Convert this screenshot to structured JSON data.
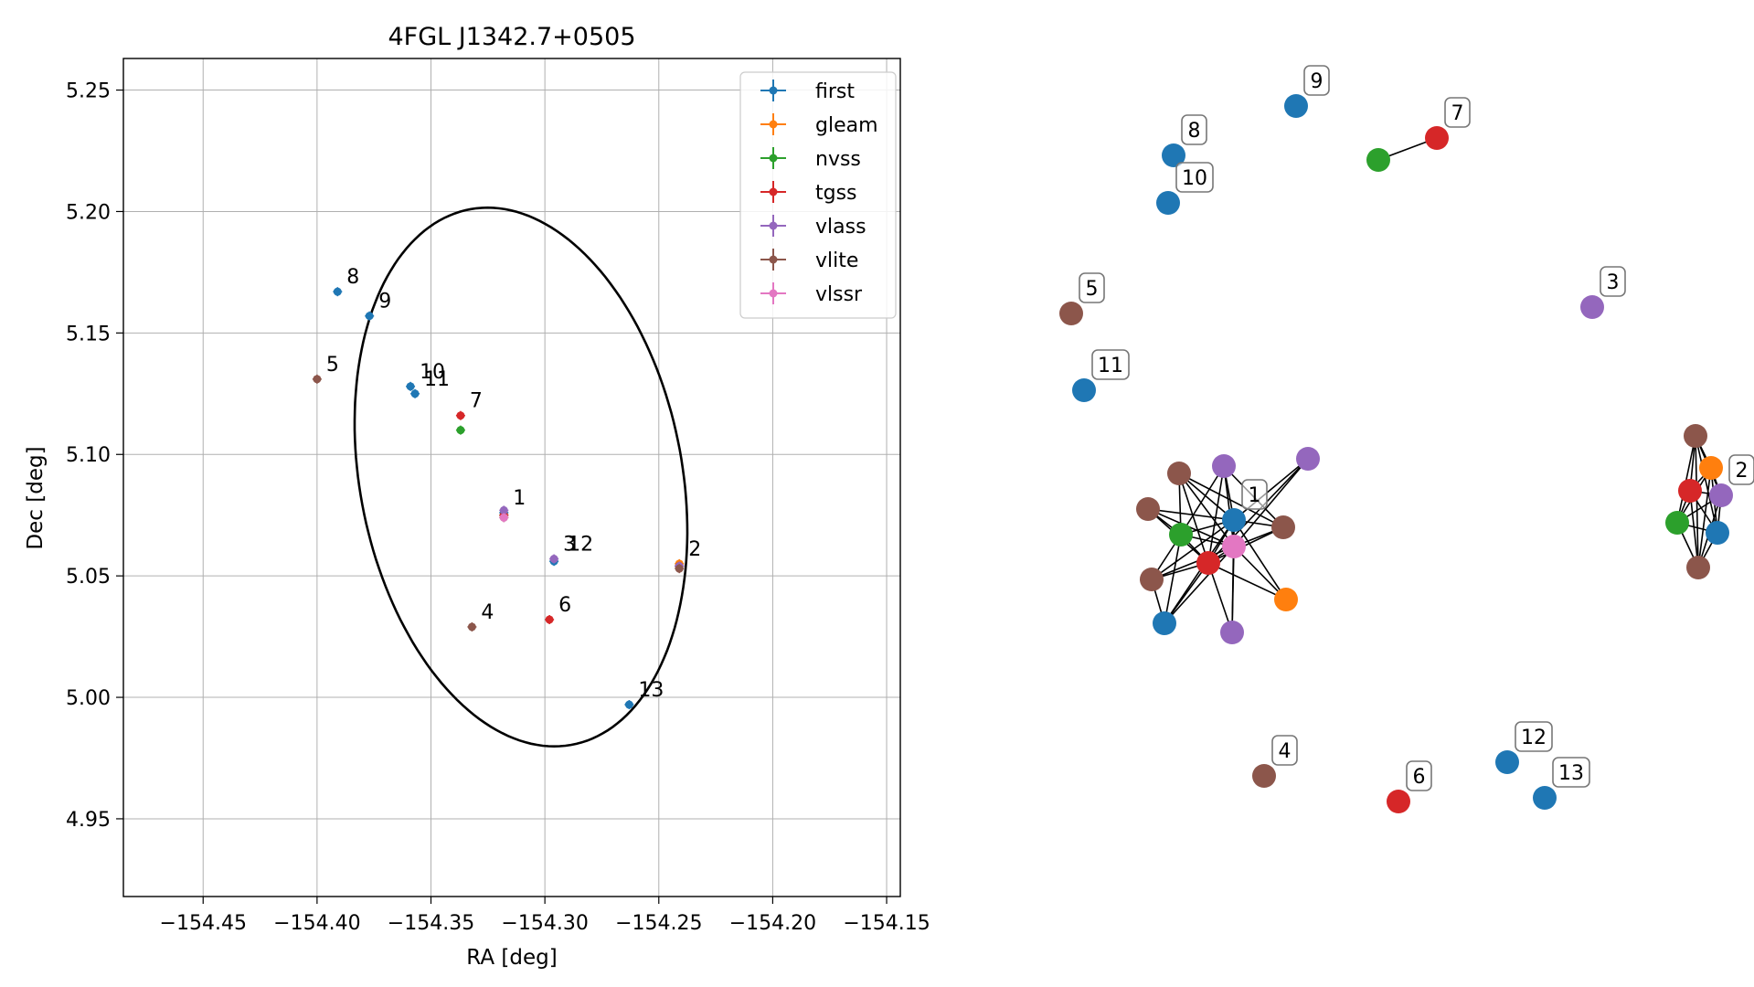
{
  "chart_data": [
    {
      "type": "scatter",
      "title": "4FGL J1342.7+0505",
      "xlabel": "RA [deg]",
      "ylabel": "Dec [deg]",
      "xlim": [
        -154.485,
        -154.144
      ],
      "ylim": [
        4.918,
        5.263
      ],
      "xticks": [
        -154.45,
        -154.4,
        -154.35,
        -154.3,
        -154.25,
        -154.2,
        -154.15
      ],
      "xtick_labels": [
        "−154.45",
        "−154.40",
        "−154.35",
        "−154.30",
        "−154.25",
        "−154.20",
        "−154.15"
      ],
      "yticks": [
        4.95,
        5.0,
        5.05,
        5.1,
        5.15,
        5.2,
        5.25
      ],
      "ytick_labels": [
        "4.95",
        "5.00",
        "5.05",
        "5.10",
        "5.15",
        "5.20",
        "5.25"
      ],
      "grid": true,
      "legend_position": "top-right",
      "ellipse": {
        "center": [
          -154.3105,
          5.0907
        ],
        "semi_axes": [
          0.0705,
          0.1125
        ],
        "angle_deg": 12.5
      },
      "series": [
        {
          "name": "first",
          "color": "#1f77b4",
          "points": [
            [
              -154.391,
              5.167
            ],
            [
              -154.377,
              5.157
            ],
            [
              -154.359,
              5.128
            ],
            [
              -154.357,
              5.125
            ],
            [
              -154.296,
              5.056
            ],
            [
              -154.263,
              4.997
            ],
            [
              -154.318,
              5.076
            ]
          ]
        },
        {
          "name": "gleam",
          "color": "#ff7f0e",
          "points": [
            [
              -154.241,
              5.055
            ]
          ]
        },
        {
          "name": "nvss",
          "color": "#2ca02c",
          "points": [
            [
              -154.337,
              5.11
            ],
            [
              -154.318,
              5.075
            ],
            [
              -154.241,
              5.054
            ]
          ]
        },
        {
          "name": "tgss",
          "color": "#d62728",
          "points": [
            [
              -154.337,
              5.116
            ],
            [
              -154.298,
              5.032
            ],
            [
              -154.318,
              5.075
            ],
            [
              -154.241,
              5.054
            ]
          ]
        },
        {
          "name": "vlass",
          "color": "#9467bd",
          "points": [
            [
              -154.318,
              5.077
            ],
            [
              -154.296,
              5.057
            ],
            [
              -154.241,
              5.054
            ]
          ]
        },
        {
          "name": "vlite",
          "color": "#8c564b",
          "points": [
            [
              -154.4,
              5.131
            ],
            [
              -154.332,
              5.029
            ],
            [
              -154.241,
              5.053
            ],
            [
              -154.318,
              5.074
            ]
          ]
        },
        {
          "name": "vlssr",
          "color": "#e377c2",
          "points": [
            [
              -154.318,
              5.074
            ]
          ]
        }
      ],
      "annotations": [
        {
          "text": "1",
          "x": -154.318,
          "y": 5.076
        },
        {
          "text": "2",
          "x": -154.241,
          "y": 5.055
        },
        {
          "text": "3",
          "x": -154.296,
          "y": 5.057
        },
        {
          "text": "12",
          "x": -154.294,
          "y": 5.057
        },
        {
          "text": "4",
          "x": -154.332,
          "y": 5.029
        },
        {
          "text": "5",
          "x": -154.4,
          "y": 5.131
        },
        {
          "text": "6",
          "x": -154.298,
          "y": 5.032
        },
        {
          "text": "7",
          "x": -154.337,
          "y": 5.116
        },
        {
          "text": "8",
          "x": -154.391,
          "y": 5.167
        },
        {
          "text": "9",
          "x": -154.377,
          "y": 5.157
        },
        {
          "text": "10",
          "x": -154.359,
          "y": 5.128
        },
        {
          "text": "11",
          "x": -154.357,
          "y": 5.125
        },
        {
          "text": "13",
          "x": -154.263,
          "y": 4.997
        }
      ]
    },
    {
      "type": "network",
      "description_visible": "unlabeled graph of source associations, node colors by survey",
      "nodes": [
        {
          "id": "n8",
          "color": "#1f77b4",
          "label": "8"
        },
        {
          "id": "n9",
          "color": "#1f77b4",
          "label": "9"
        },
        {
          "id": "n10",
          "color": "#1f77b4",
          "label": "10"
        },
        {
          "id": "n7g",
          "color": "#2ca02c",
          "label": ""
        },
        {
          "id": "n7r",
          "color": "#d62728",
          "label": "7"
        },
        {
          "id": "n5",
          "color": "#8c564b",
          "label": "5"
        },
        {
          "id": "n11",
          "color": "#1f77b4",
          "label": "11"
        },
        {
          "id": "n3",
          "color": "#9467bd",
          "label": "3"
        },
        {
          "id": "n4",
          "color": "#8c564b",
          "label": "4"
        },
        {
          "id": "n6",
          "color": "#d62728",
          "label": "6"
        },
        {
          "id": "n12",
          "color": "#1f77b4",
          "label": "12"
        },
        {
          "id": "n13",
          "color": "#1f77b4",
          "label": "13"
        },
        {
          "id": "c1",
          "color": "#8c564b",
          "label": ""
        },
        {
          "id": "c2",
          "color": "#9467bd",
          "label": ""
        },
        {
          "id": "c3",
          "color": "#9467bd",
          "label": ""
        },
        {
          "id": "c4",
          "color": "#8c564b",
          "label": ""
        },
        {
          "id": "c5",
          "color": "#2ca02c",
          "label": ""
        },
        {
          "id": "c6",
          "color": "#1f77b4",
          "label": "1"
        },
        {
          "id": "c7",
          "color": "#8c564b",
          "label": ""
        },
        {
          "id": "c8",
          "color": "#e377c2",
          "label": ""
        },
        {
          "id": "c9",
          "color": "#d62728",
          "label": ""
        },
        {
          "id": "c10",
          "color": "#8c564b",
          "label": ""
        },
        {
          "id": "c11",
          "color": "#ff7f0e",
          "label": ""
        },
        {
          "id": "c12",
          "color": "#1f77b4",
          "label": ""
        },
        {
          "id": "c13",
          "color": "#9467bd",
          "label": ""
        },
        {
          "id": "r1",
          "color": "#8c564b",
          "label": ""
        },
        {
          "id": "r2",
          "color": "#ff7f0e",
          "label": ""
        },
        {
          "id": "r3",
          "color": "#9467bd",
          "label": "2"
        },
        {
          "id": "r4",
          "color": "#d62728",
          "label": ""
        },
        {
          "id": "r5",
          "color": "#2ca02c",
          "label": ""
        },
        {
          "id": "r6",
          "color": "#1f77b4",
          "label": ""
        },
        {
          "id": "r7",
          "color": "#8c564b",
          "label": ""
        }
      ],
      "edges": [
        [
          "n7g",
          "n7r"
        ],
        [
          "c1",
          "c5"
        ],
        [
          "c1",
          "c6"
        ],
        [
          "c1",
          "c9"
        ],
        [
          "c1",
          "c8"
        ],
        [
          "c1",
          "c7"
        ],
        [
          "c2",
          "c5"
        ],
        [
          "c2",
          "c6"
        ],
        [
          "c2",
          "c9"
        ],
        [
          "c2",
          "c8"
        ],
        [
          "c2",
          "c7"
        ],
        [
          "c3",
          "c6"
        ],
        [
          "c3",
          "c9"
        ],
        [
          "c3",
          "c8"
        ],
        [
          "c4",
          "c5"
        ],
        [
          "c4",
          "c6"
        ],
        [
          "c4",
          "c9"
        ],
        [
          "c4",
          "c8"
        ],
        [
          "c5",
          "c6"
        ],
        [
          "c5",
          "c9"
        ],
        [
          "c5",
          "c8"
        ],
        [
          "c5",
          "c10"
        ],
        [
          "c5",
          "c12"
        ],
        [
          "c6",
          "c9"
        ],
        [
          "c6",
          "c8"
        ],
        [
          "c6",
          "c7"
        ],
        [
          "c6",
          "c10"
        ],
        [
          "c6",
          "c12"
        ],
        [
          "c6",
          "c13"
        ],
        [
          "c6",
          "c11"
        ],
        [
          "c7",
          "c9"
        ],
        [
          "c7",
          "c8"
        ],
        [
          "c8",
          "c9"
        ],
        [
          "c8",
          "c10"
        ],
        [
          "c8",
          "c11"
        ],
        [
          "c8",
          "c12"
        ],
        [
          "c8",
          "c13"
        ],
        [
          "c9",
          "c10"
        ],
        [
          "c9",
          "c11"
        ],
        [
          "c9",
          "c12"
        ],
        [
          "c9",
          "c13"
        ],
        [
          "c10",
          "c12"
        ],
        [
          "r1",
          "r2"
        ],
        [
          "r1",
          "r3"
        ],
        [
          "r1",
          "r4"
        ],
        [
          "r1",
          "r5"
        ],
        [
          "r1",
          "r6"
        ],
        [
          "r1",
          "r7"
        ],
        [
          "r2",
          "r3"
        ],
        [
          "r2",
          "r4"
        ],
        [
          "r2",
          "r5"
        ],
        [
          "r2",
          "r6"
        ],
        [
          "r2",
          "r7"
        ],
        [
          "r3",
          "r4"
        ],
        [
          "r3",
          "r5"
        ],
        [
          "r3",
          "r6"
        ],
        [
          "r3",
          "r7"
        ],
        [
          "r4",
          "r5"
        ],
        [
          "r4",
          "r6"
        ],
        [
          "r4",
          "r7"
        ],
        [
          "r5",
          "r6"
        ],
        [
          "r5",
          "r7"
        ],
        [
          "r6",
          "r7"
        ]
      ]
    }
  ]
}
